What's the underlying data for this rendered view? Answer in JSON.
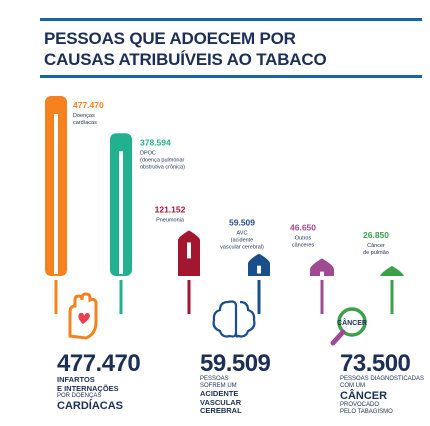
{
  "header": {
    "title_line1": "PESSOAS QUE ADOECEM POR",
    "title_line2": "CAUSAS ATRIBUÍVEIS AO TABACO"
  },
  "chart_data": {
    "type": "bar",
    "categories": [
      {
        "value_label": "477.470",
        "name": [
          "Doenças",
          "cardíacas"
        ]
      },
      {
        "value_label": "378.594",
        "name": [
          "DPOC",
          "(doença pulmonar",
          "obstrutiva crônica)"
        ]
      },
      {
        "value_label": "121.152",
        "name": [
          "Pneumonia"
        ]
      },
      {
        "value_label": "59.509",
        "name": [
          "AVC",
          "(acidente",
          "vascular cerebral)"
        ]
      },
      {
        "value_label": "46.650",
        "name": [
          "Outros",
          "cânceres"
        ]
      },
      {
        "value_label": "26.850",
        "name": [
          "Câncer",
          "de pulmão"
        ]
      }
    ],
    "values": [
      477470,
      378594,
      121152,
      59509,
      46650,
      26850
    ],
    "colors": [
      "#f5821f",
      "#22b18f",
      "#a3162f",
      "#1b4f8c",
      "#a04a93",
      "#3aa14a"
    ]
  },
  "icons": [
    "heart-hand-icon",
    "brain-icon",
    "magnifier-icon"
  ],
  "icon_badge": "CÂNCER",
  "stats": [
    {
      "number": "477.470",
      "lines": [
        {
          "text": "INFARTOS",
          "style": "b"
        },
        {
          "text": "E INTERNAÇÕES",
          "style": "b"
        },
        {
          "text": "POR DOENÇAS",
          "style": "s"
        },
        {
          "text": "CARDÍACAS",
          "style": "bl"
        }
      ]
    },
    {
      "number": "59.509",
      "lines": [
        {
          "text": "PESSOAS",
          "style": "s"
        },
        {
          "text": "SOFREM UM",
          "style": "s"
        },
        {
          "text": "ACIDENTE",
          "style": "b"
        },
        {
          "text": "VASCULAR",
          "style": "b"
        },
        {
          "text": "CEREBRAL",
          "style": "b"
        }
      ]
    },
    {
      "number": "73.500",
      "lines": [
        {
          "text": "PESSOAS DIAGNOSTICADAS",
          "style": "s"
        },
        {
          "text": "COM UM",
          "style": "s"
        },
        {
          "text": "CÂNCER",
          "style": "bl"
        },
        {
          "text": "PROVOCADO",
          "style": "s"
        },
        {
          "text": "PELO TABAGISMO",
          "style": "s"
        }
      ]
    }
  ]
}
